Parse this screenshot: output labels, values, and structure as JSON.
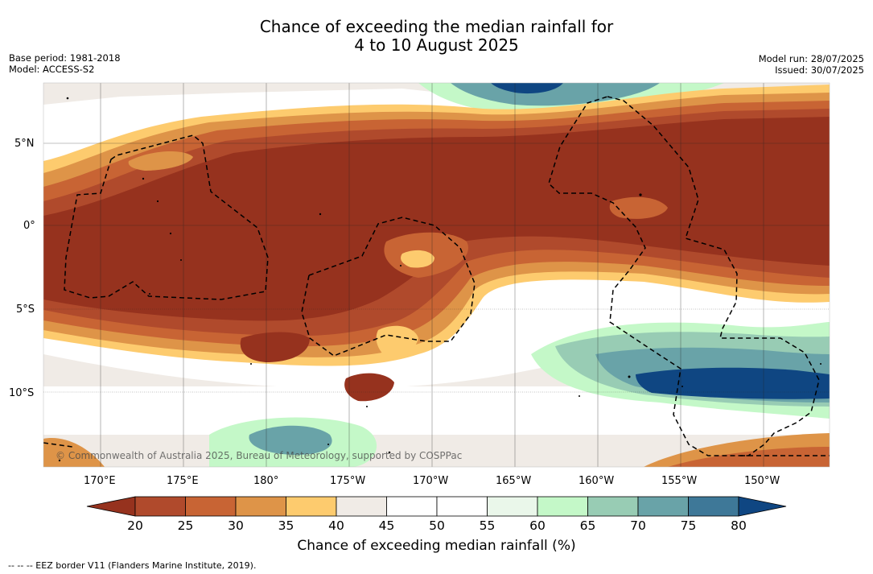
{
  "title": {
    "line1": "Chance of exceeding the median rainfall for",
    "line2": "4 to 10 August 2025"
  },
  "meta_left": {
    "base_period": "Base period: 1981-2018",
    "model": "Model: ACCESS-S2"
  },
  "meta_right": {
    "model_run": "Model run: 28/07/2025",
    "issued": "Issued: 30/07/2025"
  },
  "lat_labels": [
    "5°N",
    "0°",
    "5°S",
    "10°S"
  ],
  "lon_labels": [
    "170°E",
    "175°E",
    "180°",
    "175°W",
    "170°W",
    "165°W",
    "160°W",
    "155°W",
    "150°W"
  ],
  "colorbar": {
    "title": "Chance of exceeding median rainfall (%)",
    "ticks": [
      "20",
      "25",
      "30",
      "35",
      "40",
      "45",
      "50",
      "55",
      "60",
      "65",
      "70",
      "75",
      "80"
    ],
    "colors": [
      "#96321e",
      "#b04a2c",
      "#c86434",
      "#de9448",
      "#fdcb6e",
      "#f0ebe6",
      "#ffffff",
      "#ffffff",
      "#eaf7ea",
      "#c4f8c8",
      "#98ccb4",
      "#69a3a8",
      "#3e7898",
      "#0f4682"
    ],
    "units": "%"
  },
  "copyright": "© Commonwealth of Australia 2025, Bureau of Meteorology, supported by COSPPac",
  "footnote": "-- -- -- EEZ border V11 (Flanders Marine Institute, 2019).",
  "map_colors": {
    "very_dry": "#96321e",
    "dry": "#c86434",
    "moderate_dry": "#de9448",
    "slight_dry": "#fdcb6e",
    "neutral": "#f0ebe6",
    "wet": "#c4f8c8",
    "very_wet": "#0f4682"
  }
}
